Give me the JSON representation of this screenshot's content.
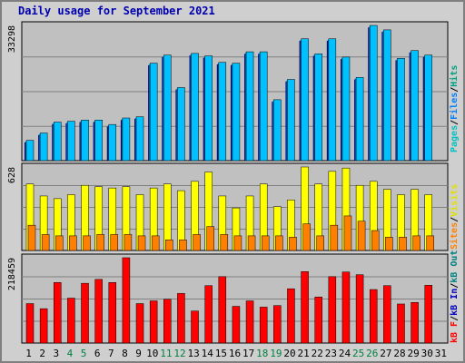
{
  "title": "Daily usage for September 2021",
  "chart_data": [
    {
      "type": "bar",
      "panel": "pages-files-hits",
      "ymax_label": "33298",
      "ymax": 33298,
      "categories": [
        "1",
        "2",
        "3",
        "4",
        "5",
        "6",
        "7",
        "8",
        "9",
        "10",
        "11",
        "12",
        "13",
        "14",
        "15",
        "16",
        "17",
        "18",
        "19",
        "20",
        "21",
        "22",
        "23",
        "24",
        "25",
        "26",
        "27",
        "28",
        "29",
        "30",
        "31"
      ],
      "weekend_days": [
        "4",
        "5",
        "11",
        "12",
        "18",
        "19",
        "25",
        "26"
      ],
      "series": [
        {
          "name": "Hits",
          "color": "#00c0ff",
          "values": [
            5000,
            6800,
            9500,
            9700,
            10000,
            10000,
            8900,
            10500,
            10800,
            24000,
            26000,
            18000,
            26400,
            25800,
            24200,
            24000,
            26800,
            26800,
            15000,
            20000,
            30000,
            26300,
            30000,
            25500,
            20500,
            33298,
            32200,
            25200,
            27100,
            26000,
            null
          ]
        },
        {
          "name": "Files",
          "color": "#0070b0",
          "values": [
            4700,
            6500,
            9200,
            9400,
            9700,
            9700,
            8600,
            10200,
            10500,
            23700,
            25700,
            17700,
            26100,
            25500,
            23900,
            23700,
            26500,
            26500,
            14700,
            19700,
            29700,
            26000,
            29700,
            25200,
            20200,
            33000,
            31900,
            24900,
            26800,
            25700,
            null
          ]
        },
        {
          "name": "Pages",
          "color": "#000080",
          "values": [
            4500,
            6300,
            9000,
            9200,
            9500,
            9500,
            8400,
            10000,
            10300,
            23500,
            25500,
            17500,
            25900,
            25300,
            23700,
            23500,
            26300,
            26300,
            14500,
            19500,
            29500,
            25800,
            29500,
            25000,
            20000,
            32800,
            31700,
            24700,
            26600,
            25500,
            null
          ]
        }
      ]
    },
    {
      "type": "bar",
      "panel": "visits-sites",
      "ymax_label": "628",
      "ymax": 628,
      "series": [
        {
          "name": "Visits",
          "color": "#ffff00",
          "values": [
            500,
            410,
            390,
            420,
            490,
            480,
            470,
            480,
            420,
            470,
            500,
            450,
            520,
            590,
            410,
            320,
            410,
            500,
            330,
            380,
            628,
            500,
            595,
            620,
            490,
            520,
            460,
            420,
            460,
            420,
            null
          ]
        },
        {
          "name": "Sites",
          "color": "#ff8000",
          "values": [
            190,
            120,
            110,
            110,
            110,
            120,
            120,
            120,
            110,
            110,
            80,
            80,
            120,
            180,
            120,
            110,
            110,
            110,
            110,
            100,
            200,
            110,
            190,
            260,
            220,
            150,
            100,
            100,
            110,
            110,
            null
          ]
        }
      ]
    },
    {
      "type": "bar",
      "panel": "kbf-kbin-kbout",
      "ymax_label": "218459",
      "ymax": 218459,
      "series": [
        {
          "name": "KB F",
          "color": "#ff0000",
          "values": [
            101000,
            88000,
            155000,
            115000,
            153000,
            163000,
            155000,
            218459,
            101000,
            108000,
            112000,
            127000,
            82000,
            147000,
            170000,
            94000,
            108000,
            92000,
            96000,
            139000,
            183000,
            118000,
            170000,
            182000,
            175000,
            137000,
            147000,
            100000,
            104000,
            148000,
            null
          ]
        }
      ]
    }
  ],
  "legend_top": {
    "pages": "Pages",
    "files": "Files",
    "hits": "Hits",
    "sep": "/"
  },
  "legend_mid": {
    "sites": "Sites",
    "visits": "Visits",
    "sep": "/"
  },
  "legend_bot": {
    "kbf": "kB F",
    "kbin": "kB In",
    "kbout": "kB Out",
    "sep": "/"
  },
  "colors": {
    "pages": "#00c0c0",
    "files": "#0080ff",
    "hits": "#00a080",
    "visits": "#e0e000",
    "sites": "#ff8000",
    "kbf": "#ff0000",
    "kbin": "#0000c0",
    "kbout": "#008080",
    "weekend_tick": "#008040"
  }
}
